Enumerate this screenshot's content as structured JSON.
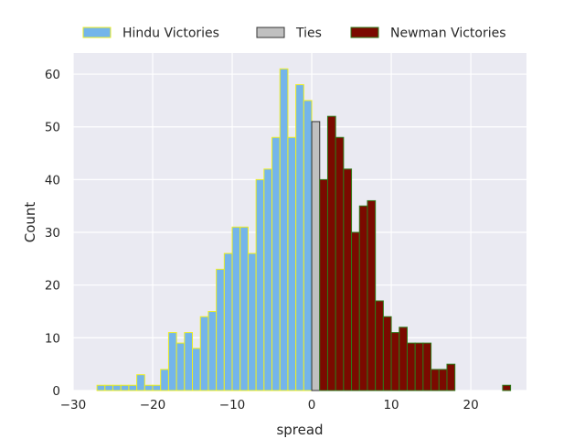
{
  "chart_data": {
    "type": "bar",
    "xlabel": "spread",
    "ylabel": "Count",
    "xlim": [
      -30,
      27
    ],
    "ylim": [
      0,
      64
    ],
    "xticks": [
      -30,
      -20,
      -10,
      0,
      10,
      20
    ],
    "yticks": [
      0,
      10,
      20,
      30,
      40,
      50,
      60
    ],
    "xtick_labels": [
      "−30",
      "−20",
      "−10",
      "0",
      "10",
      "20"
    ],
    "ytick_labels": [
      "0",
      "10",
      "20",
      "30",
      "40",
      "50",
      "60"
    ],
    "grid": true,
    "legend_position": "top",
    "bin_width": 1,
    "series": [
      {
        "name": "Hindu Victories",
        "color": "#74b5ea",
        "edgecolor": "#eeee22",
        "x": [
          -27,
          -26,
          -25,
          -24,
          -23,
          -22,
          -21,
          -20,
          -19,
          -18,
          -17,
          -16,
          -15,
          -14,
          -13,
          -12,
          -11,
          -10,
          -9,
          -8,
          -7,
          -6,
          -5,
          -4,
          -3,
          -2,
          -1
        ],
        "values": [
          1,
          1,
          1,
          1,
          1,
          3,
          1,
          1,
          4,
          11,
          9,
          11,
          8,
          14,
          15,
          23,
          26,
          31,
          31,
          26,
          40,
          42,
          48,
          61,
          48,
          58,
          55
        ]
      },
      {
        "name": "Ties",
        "color": "#c0c0c0",
        "edgecolor": "#333333",
        "x": [
          0
        ],
        "values": [
          51
        ]
      },
      {
        "name": "Newman Victories",
        "color": "#7b0a00",
        "edgecolor": "#2f7a1a",
        "x": [
          1,
          2,
          3,
          4,
          5,
          6,
          7,
          8,
          9,
          10,
          11,
          12,
          13,
          14,
          15,
          16,
          17,
          24
        ],
        "values": [
          40,
          52,
          48,
          42,
          30,
          35,
          36,
          17,
          14,
          11,
          12,
          9,
          9,
          9,
          4,
          4,
          5,
          1
        ]
      }
    ]
  }
}
